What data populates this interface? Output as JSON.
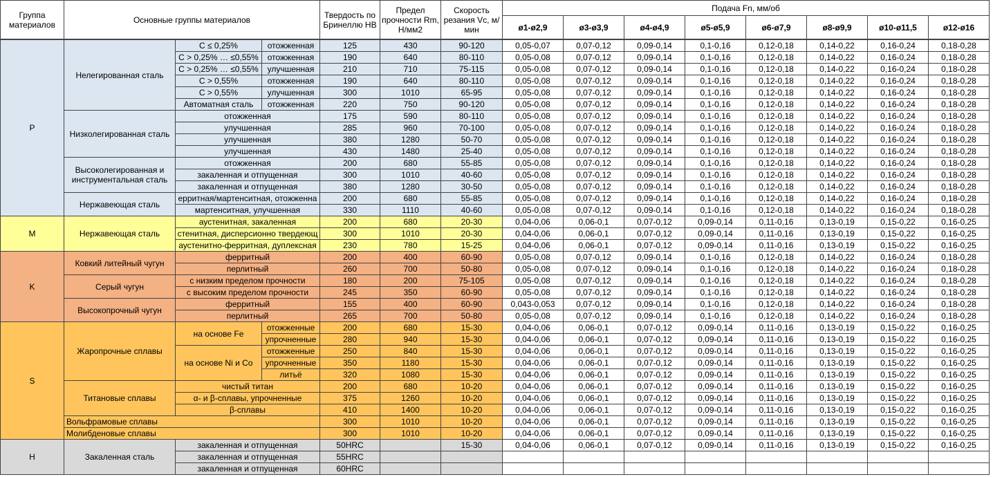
{
  "header": {
    "group": "Группа материалов",
    "materials": "Основные группы материалов",
    "hardness": "Твердость по Бринеллю НВ",
    "strength": "Предел прочности Rm, Н/мм2",
    "speed": "Скорость резания Vc, м/мин",
    "feed": "Подача Fn, мм/об",
    "diameters": [
      "ø1-ø2,9",
      "ø3-ø3,9",
      "ø4-ø4,9",
      "ø5-ø5,9",
      "ø6-ø7,9",
      "ø8-ø9,9",
      "ø10-ø11,5",
      "ø12-ø16"
    ]
  },
  "groups": [
    {
      "name": "P",
      "color": "#dce6f1",
      "subgroups": [
        {
          "name": "Нелегированная сталь",
          "rows": [
            {
              "condition": "C ≤ 0,25%",
              "state": "отожженная",
              "hb": "125",
              "rm": "430",
              "vc": "90-120",
              "feed": [
                "0,05-0,07",
                "0,07-0,12",
                "0,09-0,14",
                "0,1-0,16",
                "0,12-0,18",
                "0,14-0,22",
                "0,16-0,24",
                "0,18-0,28"
              ]
            },
            {
              "condition": "C > 0,25% … ≤0,55%",
              "state": "отожженная",
              "hb": "190",
              "rm": "640",
              "vc": "80-110",
              "feed": [
                "0,05-0,08",
                "0,07-0,12",
                "0,09-0,14",
                "0,1-0,16",
                "0,12-0,18",
                "0,14-0,22",
                "0,16-0,24",
                "0,18-0,28"
              ]
            },
            {
              "condition": "C > 0,25% … ≤0,55%",
              "state": "улучшенная",
              "hb": "210",
              "rm": "710",
              "vc": "75-115",
              "feed": [
                "0,05-0,08",
                "0,07-0,12",
                "0,09-0,14",
                "0,1-0,16",
                "0,12-0,18",
                "0,14-0,22",
                "0,16-0,24",
                "0,18-0,28"
              ]
            },
            {
              "condition": "C > 0,55%",
              "state": "отожженная",
              "hb": "190",
              "rm": "640",
              "vc": "80-110",
              "feed": [
                "0,05-0,08",
                "0,07-0,12",
                "0,09-0,14",
                "0,1-0,16",
                "0,12-0,18",
                "0,14-0,22",
                "0,16-0,24",
                "0,18-0,28"
              ]
            },
            {
              "condition": "C > 0,55%",
              "state": "улучшенная",
              "hb": "300",
              "rm": "1010",
              "vc": "65-95",
              "feed": [
                "0,05-0,08",
                "0,07-0,12",
                "0,09-0,14",
                "0,1-0,16",
                "0,12-0,18",
                "0,14-0,22",
                "0,16-0,24",
                "0,18-0,28"
              ]
            },
            {
              "condition": "Автоматная сталь",
              "state": "отожженная",
              "hb": "220",
              "rm": "750",
              "vc": "90-120",
              "feed": [
                "0,05-0,08",
                "0,07-0,12",
                "0,09-0,14",
                "0,1-0,16",
                "0,12-0,18",
                "0,14-0,22",
                "0,16-0,24",
                "0,18-0,28"
              ]
            }
          ]
        },
        {
          "name": "Низколегированная сталь",
          "rows": [
            {
              "condition": "отожженная",
              "hb": "175",
              "rm": "590",
              "vc": "80-110",
              "feed": [
                "0,05-0,08",
                "0,07-0,12",
                "0,09-0,14",
                "0,1-0,16",
                "0,12-0,18",
                "0,14-0,22",
                "0,16-0,24",
                "0,18-0,28"
              ]
            },
            {
              "condition": "улучшенная",
              "hb": "285",
              "rm": "960",
              "vc": "70-100",
              "feed": [
                "0,05-0,08",
                "0,07-0,12",
                "0,09-0,14",
                "0,1-0,16",
                "0,12-0,18",
                "0,14-0,22",
                "0,16-0,24",
                "0,18-0,28"
              ]
            },
            {
              "condition": "улучшенная",
              "hb": "380",
              "rm": "1280",
              "vc": "50-70",
              "feed": [
                "0,05-0,08",
                "0,07-0,12",
                "0,09-0,14",
                "0,1-0,16",
                "0,12-0,18",
                "0,14-0,22",
                "0,16-0,24",
                "0,18-0,28"
              ]
            },
            {
              "condition": "улучшенная",
              "hb": "430",
              "rm": "1480",
              "vc": "25-40",
              "feed": [
                "0,05-0,08",
                "0,07-0,12",
                "0,09-0,14",
                "0,1-0,16",
                "0,12-0,18",
                "0,14-0,22",
                "0,16-0,24",
                "0,18-0,28"
              ]
            }
          ]
        },
        {
          "name": "Высоколегированная и инструментальная сталь",
          "rows": [
            {
              "condition": "отожженная",
              "hb": "200",
              "rm": "680",
              "vc": "55-85",
              "feed": [
                "0,05-0,08",
                "0,07-0,12",
                "0,09-0,14",
                "0,1-0,16",
                "0,12-0,18",
                "0,14-0,22",
                "0,16-0,24",
                "0,18-0,28"
              ]
            },
            {
              "condition": "закаленная и отпущенная",
              "hb": "300",
              "rm": "1010",
              "vc": "40-60",
              "feed": [
                "0,05-0,08",
                "0,07-0,12",
                "0,09-0,14",
                "0,1-0,16",
                "0,12-0,18",
                "0,14-0,22",
                "0,16-0,24",
                "0,18-0,28"
              ]
            },
            {
              "condition": "закаленная и отпущенная",
              "hb": "380",
              "rm": "1280",
              "vc": "30-50",
              "feed": [
                "0,05-0,08",
                "0,07-0,12",
                "0,09-0,14",
                "0,1-0,16",
                "0,12-0,18",
                "0,14-0,22",
                "0,16-0,24",
                "0,18-0,28"
              ]
            }
          ]
        },
        {
          "name": "Нержавеющая сталь",
          "rows": [
            {
              "condition": "ерритная/мартенситная, отожженна",
              "hb": "200",
              "rm": "680",
              "vc": "55-85",
              "feed": [
                "0,05-0,08",
                "0,07-0,12",
                "0,09-0,14",
                "0,1-0,16",
                "0,12-0,18",
                "0,14-0,22",
                "0,16-0,24",
                "0,18-0,28"
              ]
            },
            {
              "condition": "мартенситная, улучшенная",
              "hb": "330",
              "rm": "1110",
              "vc": "40-60",
              "feed": [
                "0,05-0,08",
                "0,07-0,12",
                "0,09-0,14",
                "0,1-0,16",
                "0,12-0,18",
                "0,14-0,22",
                "0,16-0,24",
                "0,18-0,28"
              ]
            }
          ]
        }
      ]
    },
    {
      "name": "M",
      "color": "#ffff99",
      "subgroups": [
        {
          "name": "Нержавеющая сталь",
          "rows": [
            {
              "condition": "аустенитная, закаленная",
              "hb": "200",
              "rm": "680",
              "vc": "20-30",
              "feed": [
                "0,04-0,06",
                "0,06-0,1",
                "0,07-0,12",
                "0,09-0,14",
                "0,11-0,16",
                "0,13-0,19",
                "0,15-0,22",
                "0,16-0,25"
              ]
            },
            {
              "condition": "стенитная, дисперсионно твердеющ",
              "hb": "300",
              "rm": "1010",
              "vc": "20-30",
              "feed": [
                "0,04-0,06",
                "0,06-0,1",
                "0,07-0,12",
                "0,09-0,14",
                "0,11-0,16",
                "0,13-0,19",
                "0,15-0,22",
                "0,16-0,25"
              ]
            },
            {
              "condition": "аустенитно-ферритная, дуплексная",
              "hb": "230",
              "rm": "780",
              "vc": "15-25",
              "feed": [
                "0,04-0,06",
                "0,06-0,1",
                "0,07-0,12",
                "0,09-0,14",
                "0,11-0,16",
                "0,13-0,19",
                "0,15-0,22",
                "0,16-0,25"
              ]
            }
          ]
        }
      ]
    },
    {
      "name": "K",
      "color": "#f4b183",
      "subgroups": [
        {
          "name": "Ковкий литейный чугун",
          "rows": [
            {
              "condition": "ферритный",
              "hb": "200",
              "rm": "400",
              "vc": "60-90",
              "feed": [
                "0,05-0,08",
                "0,07-0,12",
                "0,09-0,14",
                "0,1-0,16",
                "0,12-0,18",
                "0,14-0,22",
                "0,16-0,24",
                "0,18-0,28"
              ]
            },
            {
              "condition": "перлитный",
              "hb": "260",
              "rm": "700",
              "vc": "50-80",
              "feed": [
                "0,05-0,08",
                "0,07-0,12",
                "0,09-0,14",
                "0,1-0,16",
                "0,12-0,18",
                "0,14-0,22",
                "0,16-0,24",
                "0,18-0,28"
              ]
            }
          ]
        },
        {
          "name": "Серый чугун",
          "rows": [
            {
              "condition": "с низким пределом прочности",
              "hb": "180",
              "rm": "200",
              "vc": "75-105",
              "feed": [
                "0,05-0,08",
                "0,07-0,12",
                "0,09-0,14",
                "0,1-0,16",
                "0,12-0,18",
                "0,14-0,22",
                "0,16-0,24",
                "0,18-0,28"
              ]
            },
            {
              "condition": "с высоким пределом прочности",
              "hb": "245",
              "rm": "350",
              "vc": "60-90",
              "feed": [
                "0,05-0,08",
                "0,07-0,12",
                "0,09-0,14",
                "0,1-0,16",
                "0,12-0,18",
                "0,14-0,22",
                "0,16-0,24",
                "0,18-0,28"
              ]
            }
          ]
        },
        {
          "name": "Высокопрочный чугун",
          "rows": [
            {
              "condition": "ферритный",
              "hb": "155",
              "rm": "400",
              "vc": "60-90",
              "feed": [
                "0,043-0,053",
                "0,07-0,12",
                "0,09-0,14",
                "0,1-0,16",
                "0,12-0,18",
                "0,14-0,22",
                "0,16-0,24",
                "0,18-0,28"
              ]
            },
            {
              "condition": "перлитный",
              "hb": "265",
              "rm": "700",
              "vc": "50-80",
              "feed": [
                "0,05-0,08",
                "0,07-0,12",
                "0,09-0,14",
                "0,1-0,16",
                "0,12-0,18",
                "0,14-0,22",
                "0,16-0,24",
                "0,18-0,28"
              ]
            }
          ]
        }
      ]
    },
    {
      "name": "S",
      "color": "#ffc55c",
      "subgroups": [
        {
          "name": "Жаропрочные сплавы",
          "bases": [
            {
              "name": "на основе Fe",
              "rows": [
                {
                  "state": "отожженные",
                  "hb": "200",
                  "rm": "680",
                  "vc": "15-30",
                  "feed": [
                    "0,04-0,06",
                    "0,06-0,1",
                    "0,07-0,12",
                    "0,09-0,14",
                    "0,11-0,16",
                    "0,13-0,19",
                    "0,15-0,22",
                    "0,16-0,25"
                  ]
                },
                {
                  "state": "упрочненные",
                  "hb": "280",
                  "rm": "940",
                  "vc": "15-30",
                  "feed": [
                    "0,04-0,06",
                    "0,06-0,1",
                    "0,07-0,12",
                    "0,09-0,14",
                    "0,11-0,16",
                    "0,13-0,19",
                    "0,15-0,22",
                    "0,16-0,25"
                  ]
                }
              ]
            },
            {
              "name": "на основе Ni и Co",
              "rows": [
                {
                  "state": "отожженные",
                  "hb": "250",
                  "rm": "840",
                  "vc": "15-30",
                  "feed": [
                    "0,04-0,06",
                    "0,06-0,1",
                    "0,07-0,12",
                    "0,09-0,14",
                    "0,11-0,16",
                    "0,13-0,19",
                    "0,15-0,22",
                    "0,16-0,25"
                  ]
                },
                {
                  "state": "упрочненные",
                  "hb": "350",
                  "rm": "1180",
                  "vc": "15-30",
                  "feed": [
                    "0,04-0,06",
                    "0,06-0,1",
                    "0,07-0,12",
                    "0,09-0,14",
                    "0,11-0,16",
                    "0,13-0,19",
                    "0,15-0,22",
                    "0,16-0,25"
                  ]
                },
                {
                  "state": "литьё",
                  "hb": "320",
                  "rm": "1080",
                  "vc": "15-30",
                  "feed": [
                    "0,04-0,06",
                    "0,06-0,1",
                    "0,07-0,12",
                    "0,09-0,14",
                    "0,11-0,16",
                    "0,13-0,19",
                    "0,15-0,22",
                    "0,16-0,25"
                  ]
                }
              ]
            }
          ]
        },
        {
          "name": "Титановые сплавы",
          "rows": [
            {
              "condition": "чистый титан",
              "hb": "200",
              "rm": "680",
              "vc": "10-20",
              "feed": [
                "0,04-0,06",
                "0,06-0,1",
                "0,07-0,12",
                "0,09-0,14",
                "0,11-0,16",
                "0,13-0,19",
                "0,15-0,22",
                "0,16-0,25"
              ]
            },
            {
              "condition": "α- и β-сплавы, упрочненные",
              "hb": "375",
              "rm": "1260",
              "vc": "10-20",
              "feed": [
                "0,04-0,06",
                "0,06-0,1",
                "0,07-0,12",
                "0,09-0,14",
                "0,11-0,16",
                "0,13-0,19",
                "0,15-0,22",
                "0,16-0,25"
              ]
            },
            {
              "condition": "β-сплавы",
              "hb": "410",
              "rm": "1400",
              "vc": "10-20",
              "feed": [
                "0,04-0,06",
                "0,06-0,1",
                "0,07-0,12",
                "0,09-0,14",
                "0,11-0,16",
                "0,13-0,19",
                "0,15-0,22",
                "0,16-0,25"
              ]
            }
          ]
        },
        {
          "name": "Вольфрамовые сплавы",
          "rows": [
            {
              "hb": "300",
              "rm": "1010",
              "vc": "10-20",
              "feed": [
                "0,04-0,06",
                "0,06-0,1",
                "0,07-0,12",
                "0,09-0,14",
                "0,11-0,16",
                "0,13-0,19",
                "0,15-0,22",
                "0,16-0,25"
              ]
            }
          ]
        },
        {
          "name": "Молибденовые сплавы",
          "rows": [
            {
              "hb": "300",
              "rm": "1010",
              "vc": "10-20",
              "feed": [
                "0,04-0,06",
                "0,06-0,1",
                "0,07-0,12",
                "0,09-0,14",
                "0,11-0,16",
                "0,13-0,19",
                "0,15-0,22",
                "0,16-0,25"
              ]
            }
          ]
        }
      ]
    },
    {
      "name": "H",
      "color": "#d9d9d9",
      "subgroups": [
        {
          "name": "Закаленная сталь",
          "rows": [
            {
              "condition": "закаленная и отпущенная",
              "hb": "50HRC",
              "vc": "15-30",
              "feed": [
                "0,04-0,06",
                "0,06-0,1",
                "0,07-0,12",
                "0,09-0,14",
                "0,11-0,16",
                "0,13-0,19",
                "0,15-0,22",
                "0,16-0,25"
              ]
            },
            {
              "condition": "закаленная и отпущенная",
              "hb": "55HRC"
            },
            {
              "condition": "закаленная и отпущенная",
              "hb": "60HRC"
            }
          ]
        }
      ]
    }
  ]
}
